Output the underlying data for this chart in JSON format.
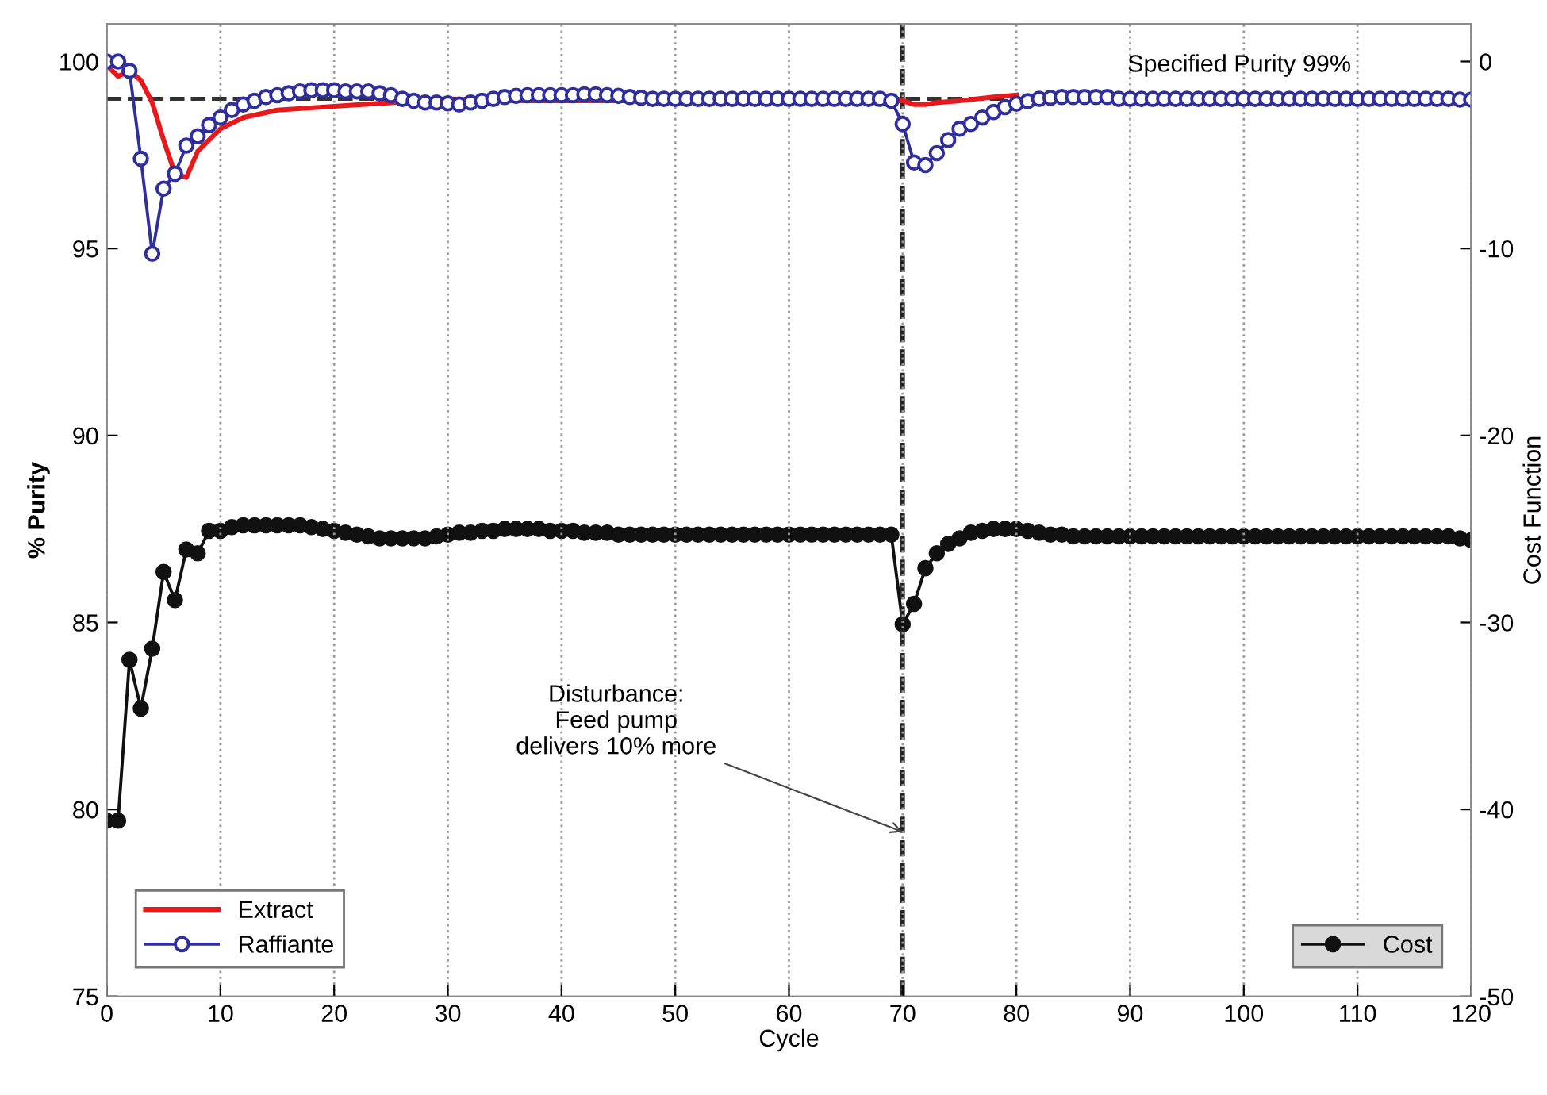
{
  "chart_data": {
    "type": "line",
    "xlabel": "Cycle",
    "ylabel": "% Purity",
    "y2label": "Cost Function",
    "xlim": [
      0,
      120
    ],
    "xticks": [
      0,
      10,
      20,
      30,
      40,
      50,
      60,
      70,
      80,
      90,
      100,
      110,
      120
    ],
    "ylim": [
      75,
      101
    ],
    "yticks": [
      75,
      80,
      85,
      90,
      95,
      100
    ],
    "y2lim": [
      -50,
      2
    ],
    "y2ticks": [
      {
        "value": -50,
        "label": "-50"
      },
      {
        "value": -40,
        "label": "-40"
      },
      {
        "value": -30,
        "label": "-30"
      },
      {
        "value": -20,
        "label": "-20"
      },
      {
        "value": -10,
        "label": "-10"
      },
      0
    ],
    "grid": "x",
    "legend": "bottom left",
    "x": [
      0,
      1,
      2,
      3,
      4,
      5,
      6,
      7,
      8,
      9,
      10,
      11,
      12,
      13,
      14,
      15,
      16,
      17,
      18,
      19,
      20,
      21,
      22,
      23,
      24,
      25,
      26,
      27,
      28,
      29,
      30,
      31,
      32,
      33,
      34,
      35,
      36,
      37,
      38,
      39,
      40,
      41,
      42,
      43,
      44,
      45,
      46,
      47,
      48,
      49,
      50,
      51,
      52,
      53,
      54,
      55,
      56,
      57,
      58,
      59,
      60,
      61,
      62,
      63,
      64,
      65,
      66,
      67,
      68,
      69,
      70,
      71,
      72,
      73,
      74,
      75,
      76,
      77,
      78,
      79,
      80,
      81,
      82,
      83,
      84,
      85,
      86,
      87,
      88,
      89,
      90,
      91,
      92,
      93,
      94,
      95,
      96,
      97,
      98,
      99,
      100,
      101,
      102,
      103,
      104,
      105,
      106,
      107,
      108,
      109,
      110,
      111,
      112,
      113,
      114,
      115,
      116,
      117,
      118,
      119,
      120
    ],
    "series": [
      {
        "name": "Extract",
        "color": "#e8191c",
        "marker": "none",
        "x": [
          0,
          1,
          2,
          3,
          4,
          5,
          6,
          7,
          8,
          9,
          10,
          12,
          15,
          20,
          25,
          30,
          35,
          40,
          70,
          71,
          72,
          73,
          75,
          78,
          80
        ],
        "values": [
          99.9,
          99.6,
          99.75,
          99.5,
          98.9,
          97.9,
          97.0,
          96.9,
          97.6,
          97.9,
          98.2,
          98.5,
          98.7,
          98.8,
          98.9,
          99.0,
          98.95,
          98.95,
          98.95,
          98.85,
          98.85,
          98.9,
          98.95,
          99.05,
          99.1
        ]
      },
      {
        "name": "Raffiante",
        "color": "#2e2e9e",
        "marker": "circle",
        "values": [
          100,
          100,
          99.75,
          97.4,
          94.86,
          96.6,
          97.0,
          97.75,
          98.0,
          98.3,
          98.5,
          98.7,
          98.85,
          98.95,
          99.05,
          99.1,
          99.15,
          99.2,
          99.23,
          99.23,
          99.23,
          99.2,
          99.2,
          99.2,
          99.15,
          99.1,
          99.0,
          98.95,
          98.9,
          98.9,
          98.88,
          98.85,
          98.9,
          98.95,
          99.0,
          99.05,
          99.08,
          99.1,
          99.1,
          99.1,
          99.1,
          99.1,
          99.12,
          99.12,
          99.1,
          99.08,
          99.05,
          99.03,
          99.0,
          99.0,
          99.0,
          99.0,
          99.0,
          99.0,
          99.0,
          99.0,
          99.0,
          99.0,
          99.0,
          99.0,
          99.0,
          99.0,
          99.0,
          99.0,
          99.0,
          99.0,
          99.0,
          99.0,
          99.0,
          98.95,
          98.33,
          97.3,
          97.23,
          97.55,
          97.9,
          98.2,
          98.33,
          98.5,
          98.65,
          98.78,
          98.87,
          98.94,
          99.0,
          99.03,
          99.05,
          99.05,
          99.05,
          99.05,
          99.05,
          99.0,
          99.0,
          99.0,
          99.0,
          99.0,
          99.0,
          99.0,
          99.0,
          99.0,
          99.0,
          99.0,
          99.0,
          99.0,
          99.0,
          99.0,
          99.0,
          99.0,
          99.0,
          99.0,
          99.0,
          99.0,
          99.0,
          99.0,
          99.0,
          99.0,
          99.0,
          99.0,
          99.0,
          99.0,
          99.0,
          98.98,
          98.98
        ]
      },
      {
        "name": "Cost",
        "color": "#111111",
        "marker": "circle",
        "axis": "y2",
        "values": [
          -40.6,
          -40.6,
          -32.0,
          -34.6,
          -31.4,
          -27.3,
          -28.8,
          -26.1,
          -26.3,
          -25.1,
          -25.1,
          -24.9,
          -24.8,
          -24.8,
          -24.8,
          -24.8,
          -24.8,
          -24.8,
          -24.9,
          -25.0,
          -25.1,
          -25.2,
          -25.3,
          -25.4,
          -25.5,
          -25.5,
          -25.5,
          -25.5,
          -25.5,
          -25.4,
          -25.3,
          -25.2,
          -25.2,
          -25.1,
          -25.1,
          -25.0,
          -25.0,
          -25.0,
          -25.0,
          -25.1,
          -25.1,
          -25.1,
          -25.2,
          -25.2,
          -25.2,
          -25.3,
          -25.3,
          -25.3,
          -25.3,
          -25.3,
          -25.3,
          -25.3,
          -25.3,
          -25.3,
          -25.3,
          -25.3,
          -25.3,
          -25.3,
          -25.3,
          -25.3,
          -25.3,
          -25.3,
          -25.3,
          -25.3,
          -25.3,
          -25.3,
          -25.3,
          -25.3,
          -25.3,
          -25.3,
          -30.1,
          -29.0,
          -27.1,
          -26.3,
          -25.8,
          -25.5,
          -25.2,
          -25.1,
          -25.0,
          -25.0,
          -25.0,
          -25.1,
          -25.2,
          -25.3,
          -25.3,
          -25.4,
          -25.4,
          -25.4,
          -25.4,
          -25.4,
          -25.4,
          -25.4,
          -25.4,
          -25.4,
          -25.4,
          -25.4,
          -25.4,
          -25.4,
          -25.4,
          -25.4,
          -25.4,
          -25.4,
          -25.4,
          -25.4,
          -25.4,
          -25.4,
          -25.4,
          -25.4,
          -25.4,
          -25.4,
          -25.4,
          -25.4,
          -25.4,
          -25.4,
          -25.4,
          -25.4,
          -25.4,
          -25.4,
          -25.4,
          -25.5,
          -25.6
        ]
      }
    ],
    "ref_lines": [
      {
        "axis": "y",
        "value": 99,
        "label": "Specified Purity 99%",
        "color": "#333333",
        "line_style": "dashed"
      },
      {
        "axis": "x",
        "value": 70,
        "color": "#222222",
        "line_style": "dashed"
      }
    ],
    "annotations": [
      {
        "text": "Disturbance:\nFeed pump\ndelivers 10% more",
        "x": 70,
        "y": 79.4
      }
    ]
  }
}
